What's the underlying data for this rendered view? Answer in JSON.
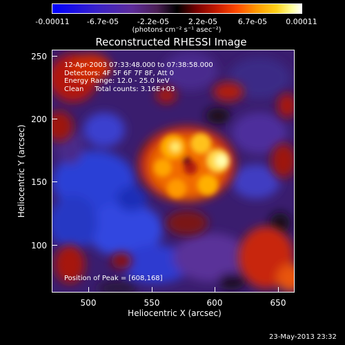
{
  "colorbar": {
    "ticks": [
      "-0.00011",
      "-6.7e-05",
      "-2.2e-05",
      "2.2e-05",
      "6.7e-05",
      "0.00011"
    ],
    "unit_label": "(photons cm⁻² s⁻¹ asec⁻²)"
  },
  "title": "Reconstructed RHESSI Image",
  "info": {
    "line1": "12-Apr-2003 07:33:48.000 to 07:38:58.000",
    "line2": "Detectors: 4F 5F 6F 7F 8F, Att 0",
    "line3": "Energy Range: 12.0 - 25.0 keV",
    "line4": "Clean     Total counts: 3.16E+03"
  },
  "peak_text": "Position of Peak = [608,168]",
  "axes": {
    "xlabel": "Heliocentric X (arcsec)",
    "ylabel": "Heliocentric Y (arcsec)",
    "xticks": [
      "500",
      "550",
      "600",
      "650"
    ],
    "yticks": [
      "250",
      "200",
      "150",
      "100"
    ]
  },
  "timestamp": "23-May-2013 23:32",
  "colors": {
    "background": "#000000",
    "foreground": "#ffffff"
  }
}
